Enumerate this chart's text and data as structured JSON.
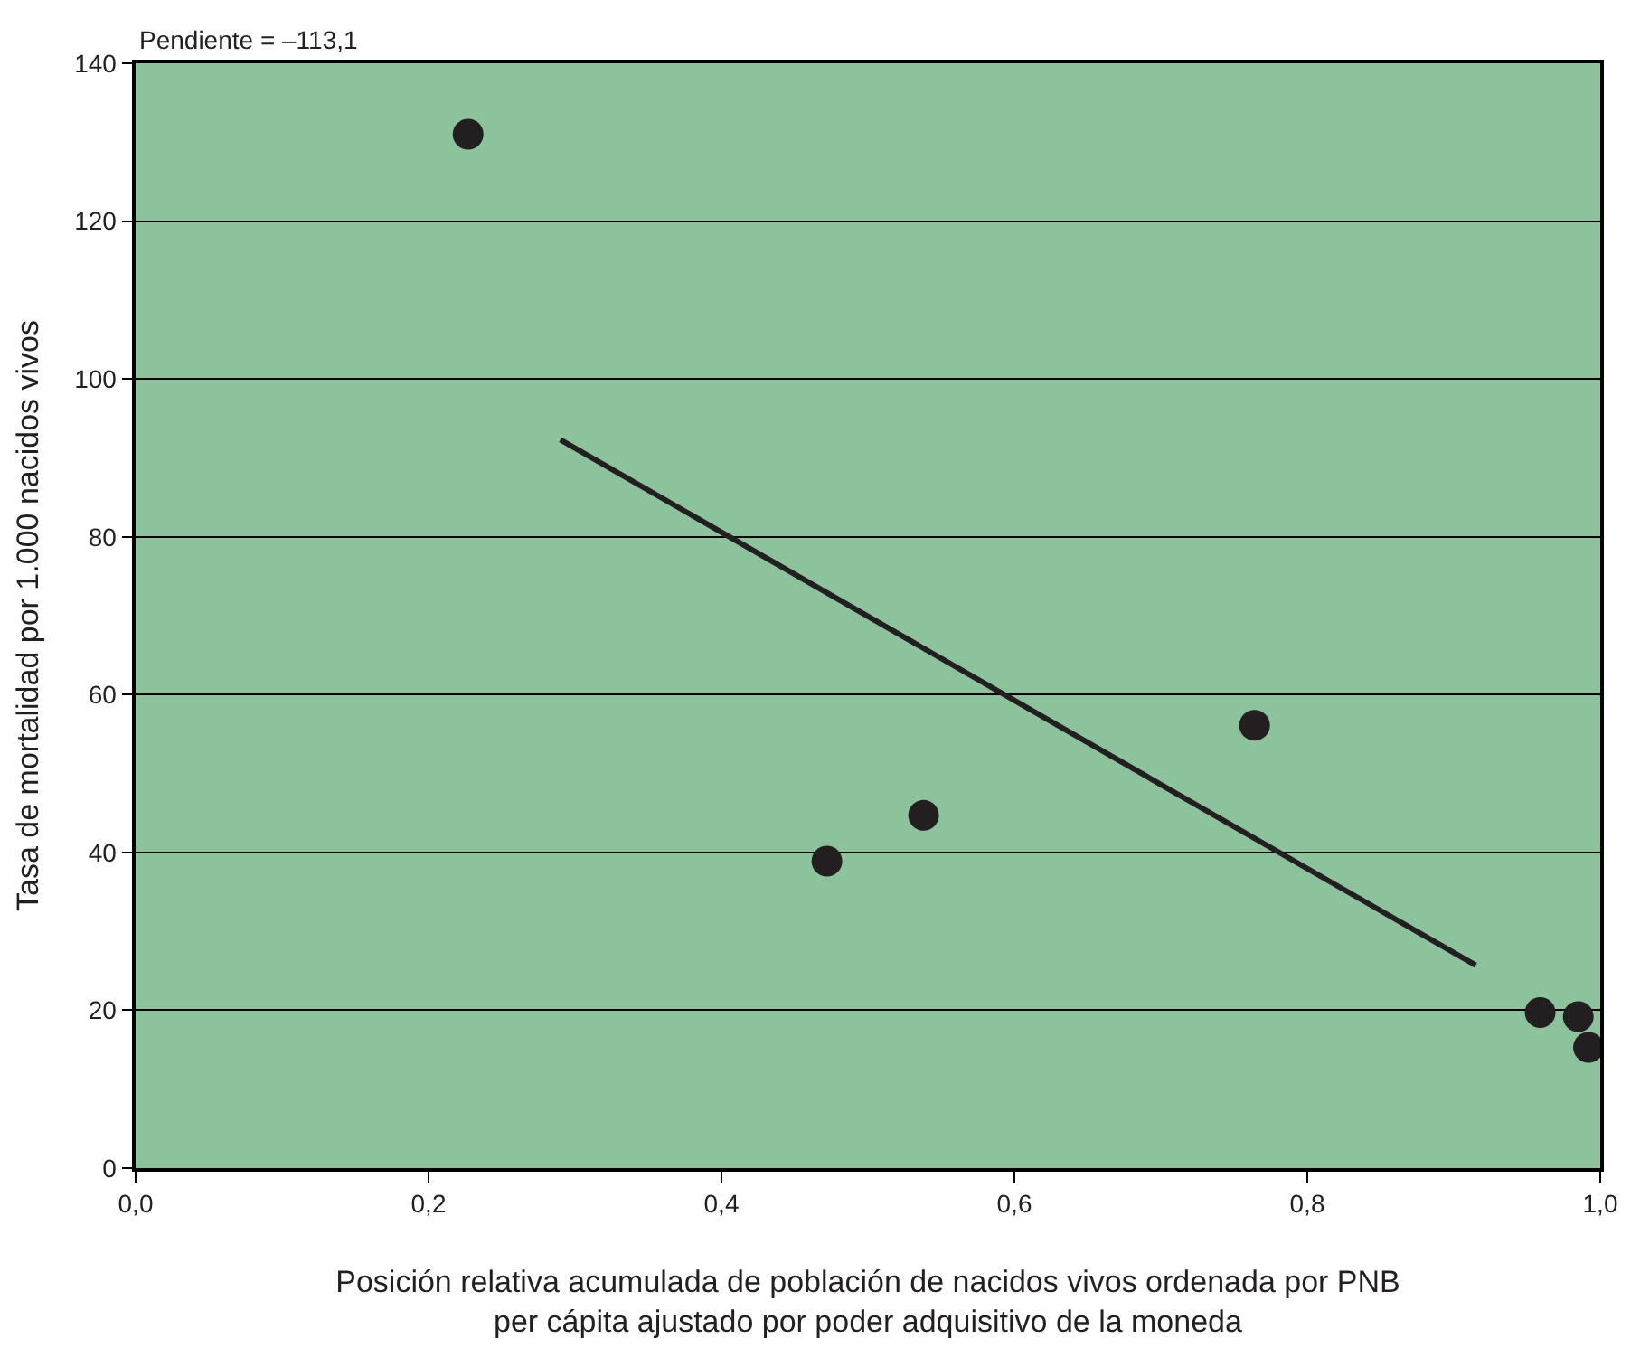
{
  "chart_data": {
    "type": "scatter",
    "xlabel": "Posición relativa acumulada de población de nacidos vivos ordenada por PNB\nper cápita ajustado por poder adquisitivo de la moneda",
    "ylabel": "Tasa de mortalidad por 1.000 nacidos vivos",
    "annotations": [
      "Pendiente = –113,1"
    ],
    "series": [
      {
        "color": "#231f20",
        "marker": "circle",
        "x": [
          0.227,
          0.472,
          0.538,
          0.764,
          0.959,
          0.985,
          0.992
        ],
        "values": [
          131,
          38.9,
          44.7,
          56.1,
          19.7,
          19.2,
          15.3
        ]
      },
      {
        "type": "line",
        "marker": "none",
        "color": "#231f20",
        "x": [
          0.29,
          0.915
        ],
        "values": [
          92.3,
          25.7
        ]
      }
    ],
    "xlim": [
      0,
      1
    ],
    "ylim": [
      0,
      140
    ],
    "xticks": [
      {
        "value": 0,
        "label": "0,0"
      },
      {
        "value": 0.2,
        "label": "0,2"
      },
      {
        "value": 0.4,
        "label": "0,4"
      },
      {
        "value": 0.6,
        "label": "0,6"
      },
      {
        "value": 0.8,
        "label": "0,8"
      },
      {
        "value": 1,
        "label": "1,0"
      }
    ],
    "yticks": [
      0,
      20,
      40,
      60,
      80,
      100,
      120,
      140
    ],
    "grid": "y"
  }
}
